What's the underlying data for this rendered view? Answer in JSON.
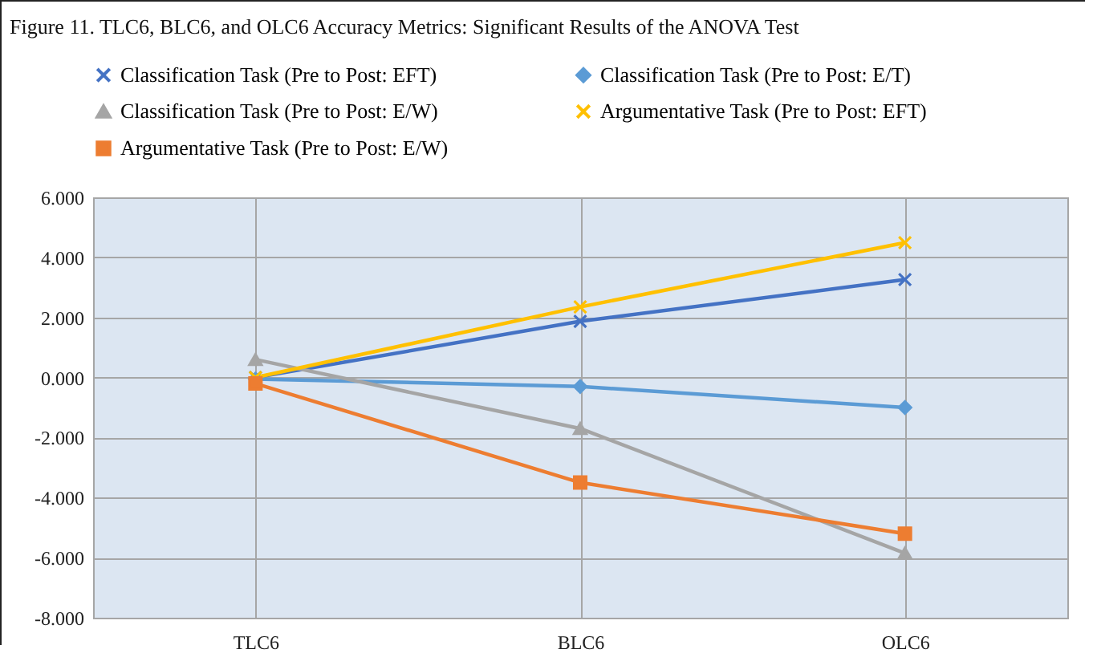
{
  "chart_data": {
    "type": "line",
    "title": "Figure 11. TLC6, BLC6, and OLC6 Accuracy Metrics: Significant Results of the ANOVA Test",
    "categories": [
      "TLC6",
      "BLC6",
      "OLC6"
    ],
    "series": [
      {
        "name": "Classification Task (Pre to Post: EFT)",
        "color": "#4472c4",
        "marker": "cross",
        "values": [
          0.0,
          1.87,
          3.26
        ]
      },
      {
        "name": "Classification Task (Pre to Post: E/T)",
        "color": "#5b9bd5",
        "marker": "diamond",
        "values": [
          -0.05,
          -0.3,
          -1.0
        ]
      },
      {
        "name": "Classification Task (Pre to Post: E/W)",
        "color": "#a5a5a5",
        "marker": "triangle",
        "values": [
          0.6,
          -1.7,
          -5.85
        ]
      },
      {
        "name": "Argumentative Task (Pre to Post: EFT)",
        "color": "#ffc000",
        "marker": "cross",
        "values": [
          0.0,
          2.35,
          4.49
        ]
      },
      {
        "name": "Argumentative Task (Pre to Post: E/W)",
        "color": "#ed7d31",
        "marker": "square",
        "values": [
          -0.2,
          -3.5,
          -5.2
        ]
      }
    ],
    "ylim": [
      -8,
      6
    ],
    "yticks": [
      {
        "value": -8,
        "label": "-8.000"
      },
      {
        "value": -6,
        "label": "-6.000"
      },
      {
        "value": -4,
        "label": "-4.000"
      },
      {
        "value": -2,
        "label": "-2.000"
      },
      {
        "value": 0,
        "label": "0.000"
      },
      {
        "value": 2,
        "label": "2.000"
      },
      {
        "value": 4,
        "label": "4.000"
      },
      {
        "value": 6,
        "label": "6.000"
      }
    ],
    "grid": true,
    "legend": "top"
  }
}
